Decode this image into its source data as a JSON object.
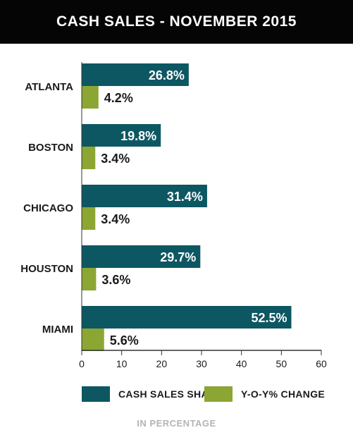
{
  "title": "CASH SALES - NOVEMBER 2015",
  "footnote": "IN PERCENTAGE",
  "colors": {
    "primary": "#0d5762",
    "secondary": "#8ca633",
    "title_bg": "#050505",
    "footnote": "#b4b4b4"
  },
  "chart_data": {
    "type": "bar",
    "orientation": "horizontal",
    "categories": [
      "ATLANTA",
      "BOSTON",
      "CHICAGO",
      "HOUSTON",
      "MIAMI"
    ],
    "series": [
      {
        "name": "CASH SALES SHARE",
        "values": [
          26.8,
          19.8,
          31.4,
          29.7,
          52.5
        ],
        "labels": [
          "26.8%",
          "19.8%",
          "31.4%",
          "29.7%",
          "52.5%"
        ],
        "color": "#0d5762"
      },
      {
        "name": "Y-O-Y% CHANGE",
        "values": [
          4.2,
          3.4,
          3.4,
          3.6,
          5.6
        ],
        "labels": [
          "4.2%",
          "3.4%",
          "3.4%",
          "3.6%",
          "5.6%"
        ],
        "color": "#8ca633"
      }
    ],
    "xlim": [
      0,
      60
    ],
    "xticks": [
      "0",
      "10",
      "20",
      "30",
      "40",
      "50",
      "60"
    ],
    "grid": false,
    "legend_position": "bottom"
  }
}
